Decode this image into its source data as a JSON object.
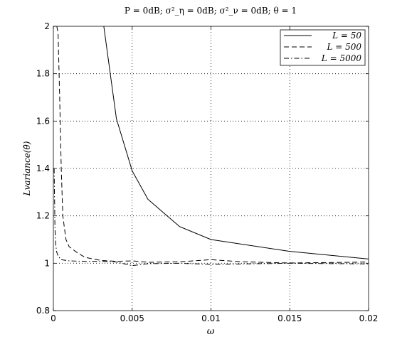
{
  "chart_data": {
    "type": "line",
    "title": "P = 0dB; σ²_η = 0dB; σ²_ν = 0dB; θ = 1",
    "xlabel": "ω",
    "ylabel": "Lvariance(θ̂)",
    "xlim": [
      0,
      0.02
    ],
    "ylim": [
      0.8,
      2
    ],
    "x_ticks": [
      "0",
      "0.005",
      "0.01",
      "0.015",
      "0.02"
    ],
    "y_ticks": [
      "0.8",
      "1",
      "1.2",
      "1.4",
      "1.6",
      "1.8",
      "2"
    ],
    "grid": true,
    "legend_position": "top-right",
    "series": [
      {
        "name": "L = 50",
        "style": "solid",
        "x": [
          0.0032,
          0.004,
          0.005,
          0.006,
          0.008,
          0.01,
          0.015,
          0.02
        ],
        "y": [
          2.0,
          1.61,
          1.39,
          1.27,
          1.155,
          1.1,
          1.05,
          1.018
        ]
      },
      {
        "name": "L = 500",
        "style": "dashed",
        "x": [
          0.00022,
          0.0003,
          0.0004,
          0.0005,
          0.0006,
          0.0008,
          0.001,
          0.0015,
          0.002,
          0.003,
          0.004,
          0.005,
          0.006,
          0.008,
          0.01,
          0.012,
          0.015,
          0.02
        ],
        "y": [
          2.0,
          1.97,
          1.7,
          1.4,
          1.2,
          1.1,
          1.07,
          1.045,
          1.025,
          1.012,
          1.008,
          1.01,
          1.004,
          1.006,
          1.015,
          1.006,
          1.001,
          1.005
        ]
      },
      {
        "name": "L = 5000",
        "style": "dashdot",
        "x": [
          5e-05,
          0.0001,
          0.00015,
          0.0002,
          0.0003,
          0.0005,
          0.001,
          0.002,
          0.003,
          0.004,
          0.005,
          0.006,
          0.008,
          0.01,
          0.015,
          0.02
        ],
        "y": [
          1.4,
          1.15,
          1.08,
          1.05,
          1.03,
          1.015,
          1.01,
          1.008,
          1.008,
          1.005,
          0.99,
          0.998,
          1.0,
          0.995,
          1.0,
          0.997
        ]
      }
    ]
  }
}
